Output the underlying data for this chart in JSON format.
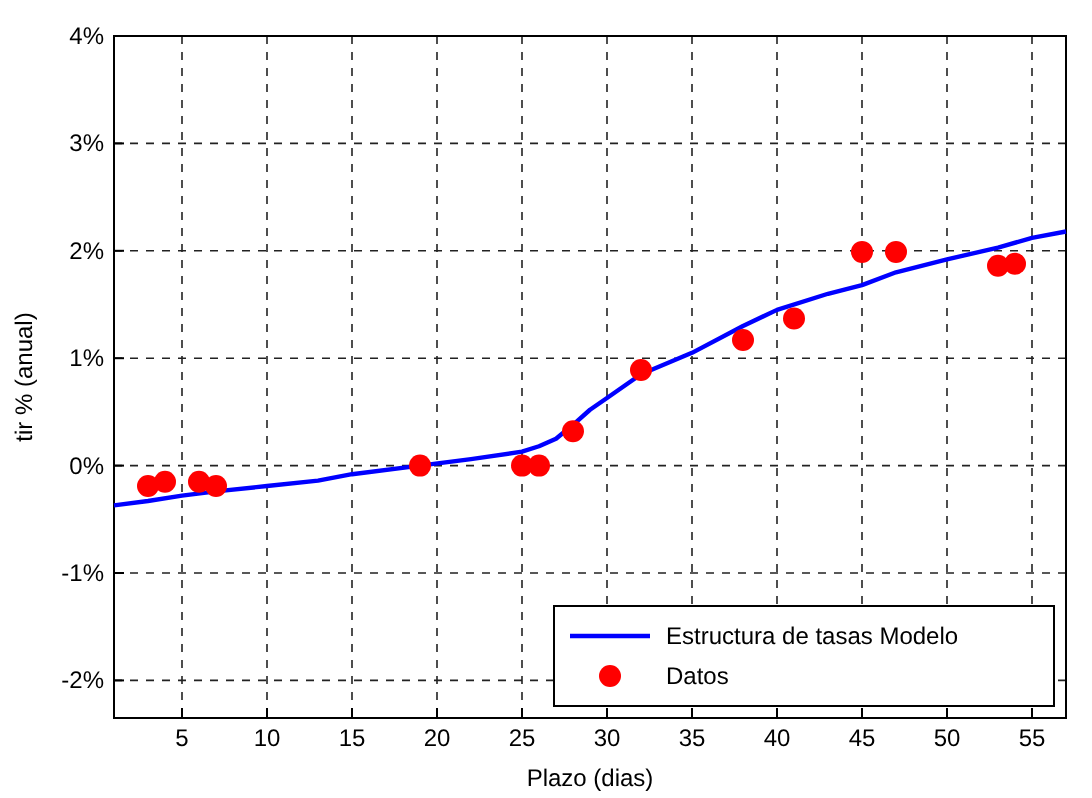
{
  "chart_data": {
    "type": "line",
    "xlabel": "Plazo (dias)",
    "ylabel": "tir % (anual)",
    "xlim": [
      1,
      57
    ],
    "ylim": [
      -2.35,
      4
    ],
    "xticks": [
      5,
      10,
      15,
      20,
      25,
      30,
      35,
      40,
      45,
      50,
      55
    ],
    "yticks": [
      {
        "value": -2,
        "label": "-2%"
      },
      {
        "value": -1,
        "label": "-1%"
      },
      {
        "value": 0,
        "label": "0%"
      },
      {
        "value": 1,
        "label": "1%"
      },
      {
        "value": 2,
        "label": "2%"
      },
      {
        "value": 3,
        "label": "3%"
      },
      {
        "value": 4,
        "label": "4%"
      }
    ],
    "grid": true,
    "legend": "bottom right",
    "series": [
      {
        "name": "Estructura de tasas Modelo",
        "color": "#0000ff",
        "marker": "none",
        "x": [
          1,
          3,
          5,
          7,
          10,
          13,
          15,
          19,
          22,
          25,
          26,
          27,
          28,
          29,
          30,
          32,
          35,
          38,
          40,
          43,
          45,
          47,
          50,
          53,
          55,
          57
        ],
        "values": [
          -0.37,
          -0.33,
          -0.28,
          -0.24,
          -0.19,
          -0.14,
          -0.08,
          0,
          0.06,
          0.13,
          0.18,
          0.25,
          0.38,
          0.52,
          0.63,
          0.85,
          1.05,
          1.3,
          1.45,
          1.6,
          1.68,
          1.8,
          1.92,
          2.03,
          2.12,
          2.18
        ]
      },
      {
        "name": "Datos",
        "type": "scatter",
        "color": "#ff0000",
        "marker": "circle",
        "x": [
          3,
          4,
          6,
          7,
          19,
          25,
          26,
          28,
          32,
          38,
          41,
          45,
          47,
          53,
          54
        ],
        "values": [
          -0.19,
          -0.15,
          -0.15,
          -0.19,
          0,
          0,
          0,
          0.32,
          0.89,
          1.17,
          1.37,
          1.99,
          1.99,
          1.86,
          1.88
        ]
      }
    ]
  }
}
